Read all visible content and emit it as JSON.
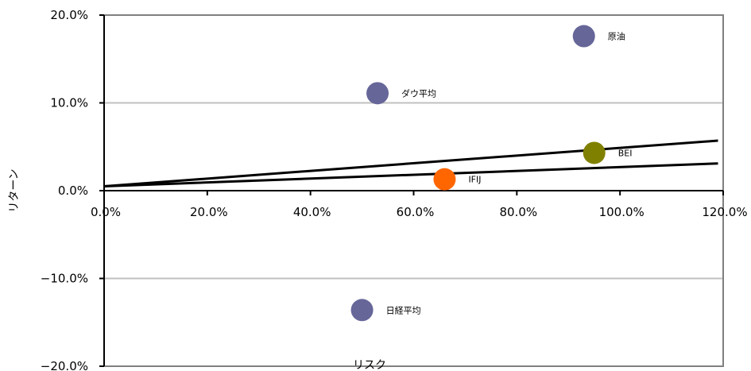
{
  "chart_data": {
    "type": "scatter",
    "xlabel": "リスク",
    "ylabel": "リターン",
    "xlim": [
      0,
      120
    ],
    "ylim": [
      -20,
      20
    ],
    "x_ticks": [
      0,
      20,
      40,
      60,
      80,
      100,
      120
    ],
    "y_ticks": [
      -20,
      -10,
      0,
      10,
      20
    ],
    "x_tick_labels": [
      "0.0%",
      "20.0%",
      "40.0%",
      "60.0%",
      "80.0%",
      "100.0%",
      "120.0%"
    ],
    "y_tick_labels": [
      "−20.0%",
      "−10.0%",
      "0.0%",
      "10.0%",
      "20.0%"
    ],
    "grid": "horizontal",
    "points": [
      {
        "label": "原油",
        "x": 93.0,
        "y": 17.6,
        "color": "#666699"
      },
      {
        "label": "ダウ平均",
        "x": 53.0,
        "y": 11.1,
        "color": "#666699"
      },
      {
        "label": "BEI",
        "x": 95.0,
        "y": 4.3,
        "color": "#808000"
      },
      {
        "label": "IFIJ",
        "x": 66.0,
        "y": 1.3,
        "color": "#ff6600"
      },
      {
        "label": "日経平均",
        "x": 50.0,
        "y": -13.6,
        "color": "#666699"
      }
    ],
    "lines": [
      {
        "points": [
          [
            0,
            0.5
          ],
          [
            119,
            5.7
          ]
        ],
        "color": "#000000"
      },
      {
        "points": [
          [
            0,
            0.5
          ],
          [
            119,
            3.1
          ]
        ],
        "color": "#000000"
      }
    ]
  }
}
